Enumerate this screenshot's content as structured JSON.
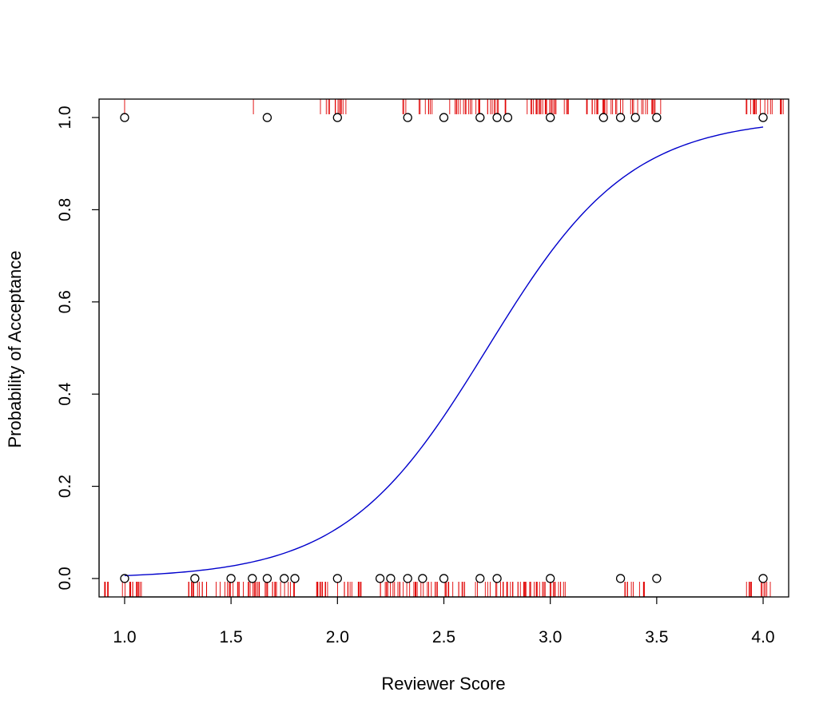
{
  "colors": {
    "curve": "#0000cc",
    "rug": "#e00000",
    "points": "#000000",
    "axis": "#000000",
    "background": "#ffffff"
  },
  "chart_data": {
    "type": "scatter",
    "title": "",
    "xlabel": "Reviewer Score",
    "ylabel": "Probability of Acceptance",
    "xlim": [
      0.88,
      4.12
    ],
    "ylim": [
      -0.04,
      1.04
    ],
    "x_ticks": [
      1.0,
      1.5,
      2.0,
      2.5,
      3.0,
      3.5,
      4.0
    ],
    "x_tick_labels": [
      "1.0",
      "1.5",
      "2.0",
      "2.5",
      "3.0",
      "3.5",
      "4.0"
    ],
    "y_ticks": [
      0.0,
      0.2,
      0.4,
      0.6,
      0.8,
      1.0
    ],
    "y_tick_labels": [
      "0.0",
      "0.2",
      "0.4",
      "0.6",
      "0.8",
      "1.0"
    ],
    "grid": false,
    "points": {
      "accepted_x": [
        1.0,
        1.67,
        2.0,
        2.33,
        2.5,
        2.67,
        2.75,
        2.8,
        3.0,
        3.25,
        3.33,
        3.4,
        3.5,
        4.0
      ],
      "rejected_x": [
        1.0,
        1.33,
        1.5,
        1.6,
        1.67,
        1.75,
        1.8,
        2.0,
        2.2,
        2.25,
        2.33,
        2.4,
        2.5,
        2.67,
        2.75,
        3.0,
        3.33,
        3.5,
        4.0
      ]
    },
    "logistic_fit": {
      "intercept": -8.06,
      "slope": 2.98,
      "x_from": 1.0,
      "x_to": 4.0
    },
    "rug": {
      "accepted_ranges": [
        [
          1.0,
          1.0
        ],
        [
          1.6,
          1.61
        ],
        [
          1.92,
          2.05
        ],
        [
          2.3,
          2.33
        ],
        [
          2.38,
          2.45
        ],
        [
          2.5,
          2.68
        ],
        [
          2.7,
          2.8
        ],
        [
          2.85,
          3.1
        ],
        [
          3.17,
          3.52
        ],
        [
          3.92,
          4.1
        ]
      ],
      "rejected_ranges": [
        [
          0.9,
          1.08
        ],
        [
          1.27,
          1.4
        ],
        [
          1.42,
          1.8
        ],
        [
          1.9,
          2.12
        ],
        [
          2.2,
          2.6
        ],
        [
          2.62,
          2.98
        ],
        [
          2.98,
          3.08
        ],
        [
          3.35,
          3.45
        ],
        [
          3.92,
          4.04
        ]
      ]
    }
  }
}
